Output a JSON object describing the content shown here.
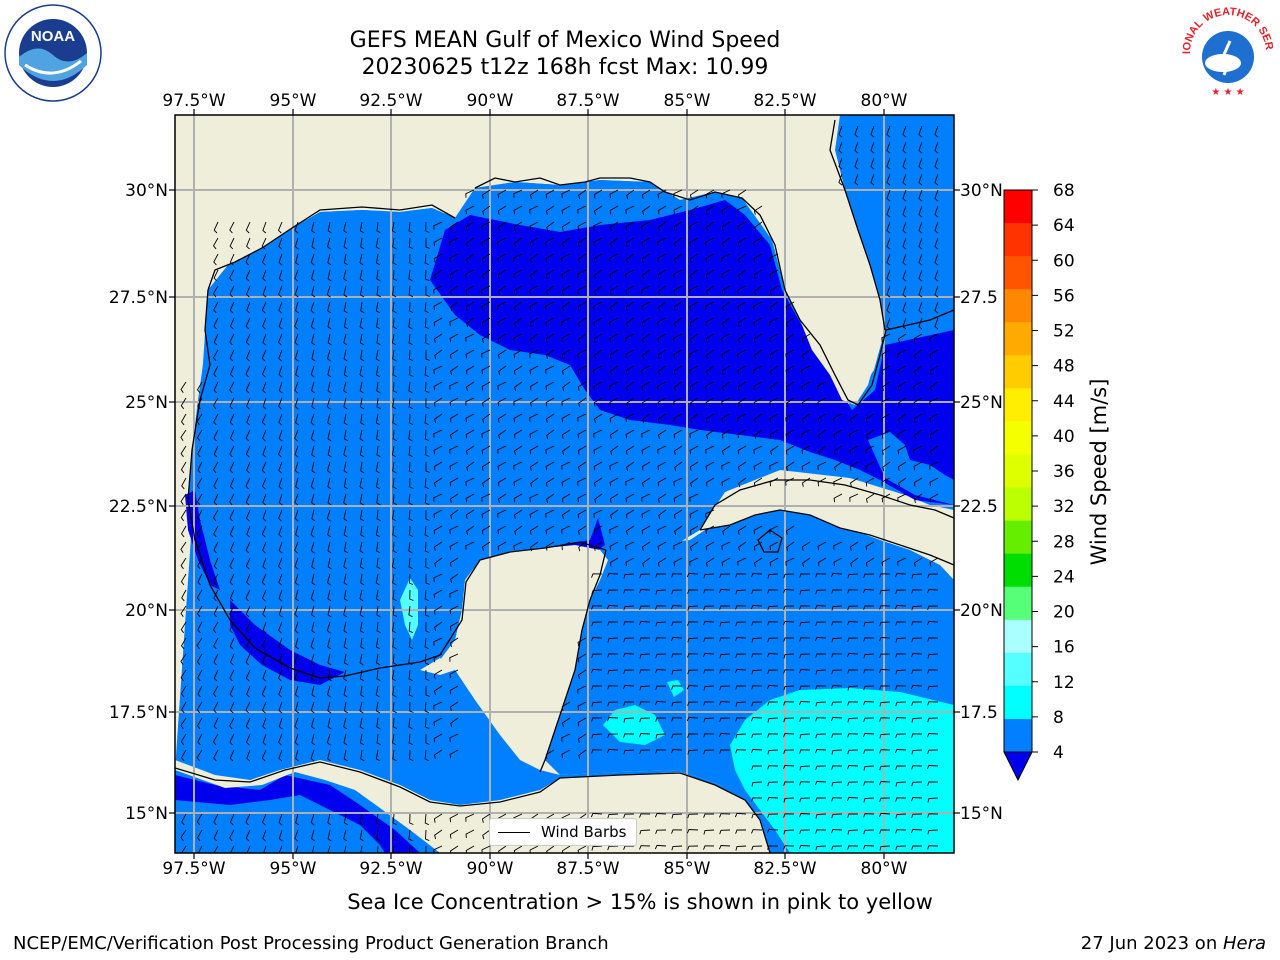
{
  "title_line1": "GEFS MEAN Gulf of Mexico Wind Speed",
  "title_line2": "20230625 t12z 168h fcst   Max: 10.99",
  "lon_labels": [
    "97.5°W",
    "95°W",
    "92.5°W",
    "90°W",
    "87.5°W",
    "85°W",
    "82.5°W",
    "80°W"
  ],
  "lat_labels_left": [
    "30°N",
    "27.5°N",
    "25°N",
    "22.5°N",
    "20°N",
    "17.5°N",
    "15°N"
  ],
  "lat_labels_right": [
    "30°N",
    "27.5",
    "25°N",
    "22.5",
    "20°N",
    "17.5",
    "15°N"
  ],
  "legend": {
    "label": "Wind Barbs"
  },
  "colorbar": {
    "label": "Wind Speed [m/s]",
    "ticks": [
      "68",
      "64",
      "60",
      "56",
      "52",
      "48",
      "44",
      "40",
      "36",
      "32",
      "28",
      "24",
      "20",
      "16",
      "12",
      "8",
      "4"
    ],
    "colors": [
      "#ff0000",
      "#ff3300",
      "#ff5500",
      "#ff8800",
      "#ffaa00",
      "#ffcc00",
      "#ffee00",
      "#f5ff00",
      "#ddff00",
      "#bbff00",
      "#66ee00",
      "#00dd00",
      "#55ff77",
      "#aaffff",
      "#55ffff",
      "#00ffff",
      "#0080ff"
    ],
    "extend_color": "#0000ee"
  },
  "map_colors": {
    "land": "#efeedb",
    "band_4_8": "#0080ff",
    "below_4": "#0000ee",
    "band_8_12": "#00ffff",
    "band_12_16": "#55ffff"
  },
  "note": "Sea Ice Concentration > 15% is shown in pink to yellow",
  "footer_left": "NCEP/EMC/Verification Post Processing Product Generation Branch",
  "footer_date": "27 Jun 2023 on ",
  "footer_host": "Hera",
  "logos": {
    "left": "NOAA",
    "right": "NATIONAL WEATHER SERVICE"
  }
}
